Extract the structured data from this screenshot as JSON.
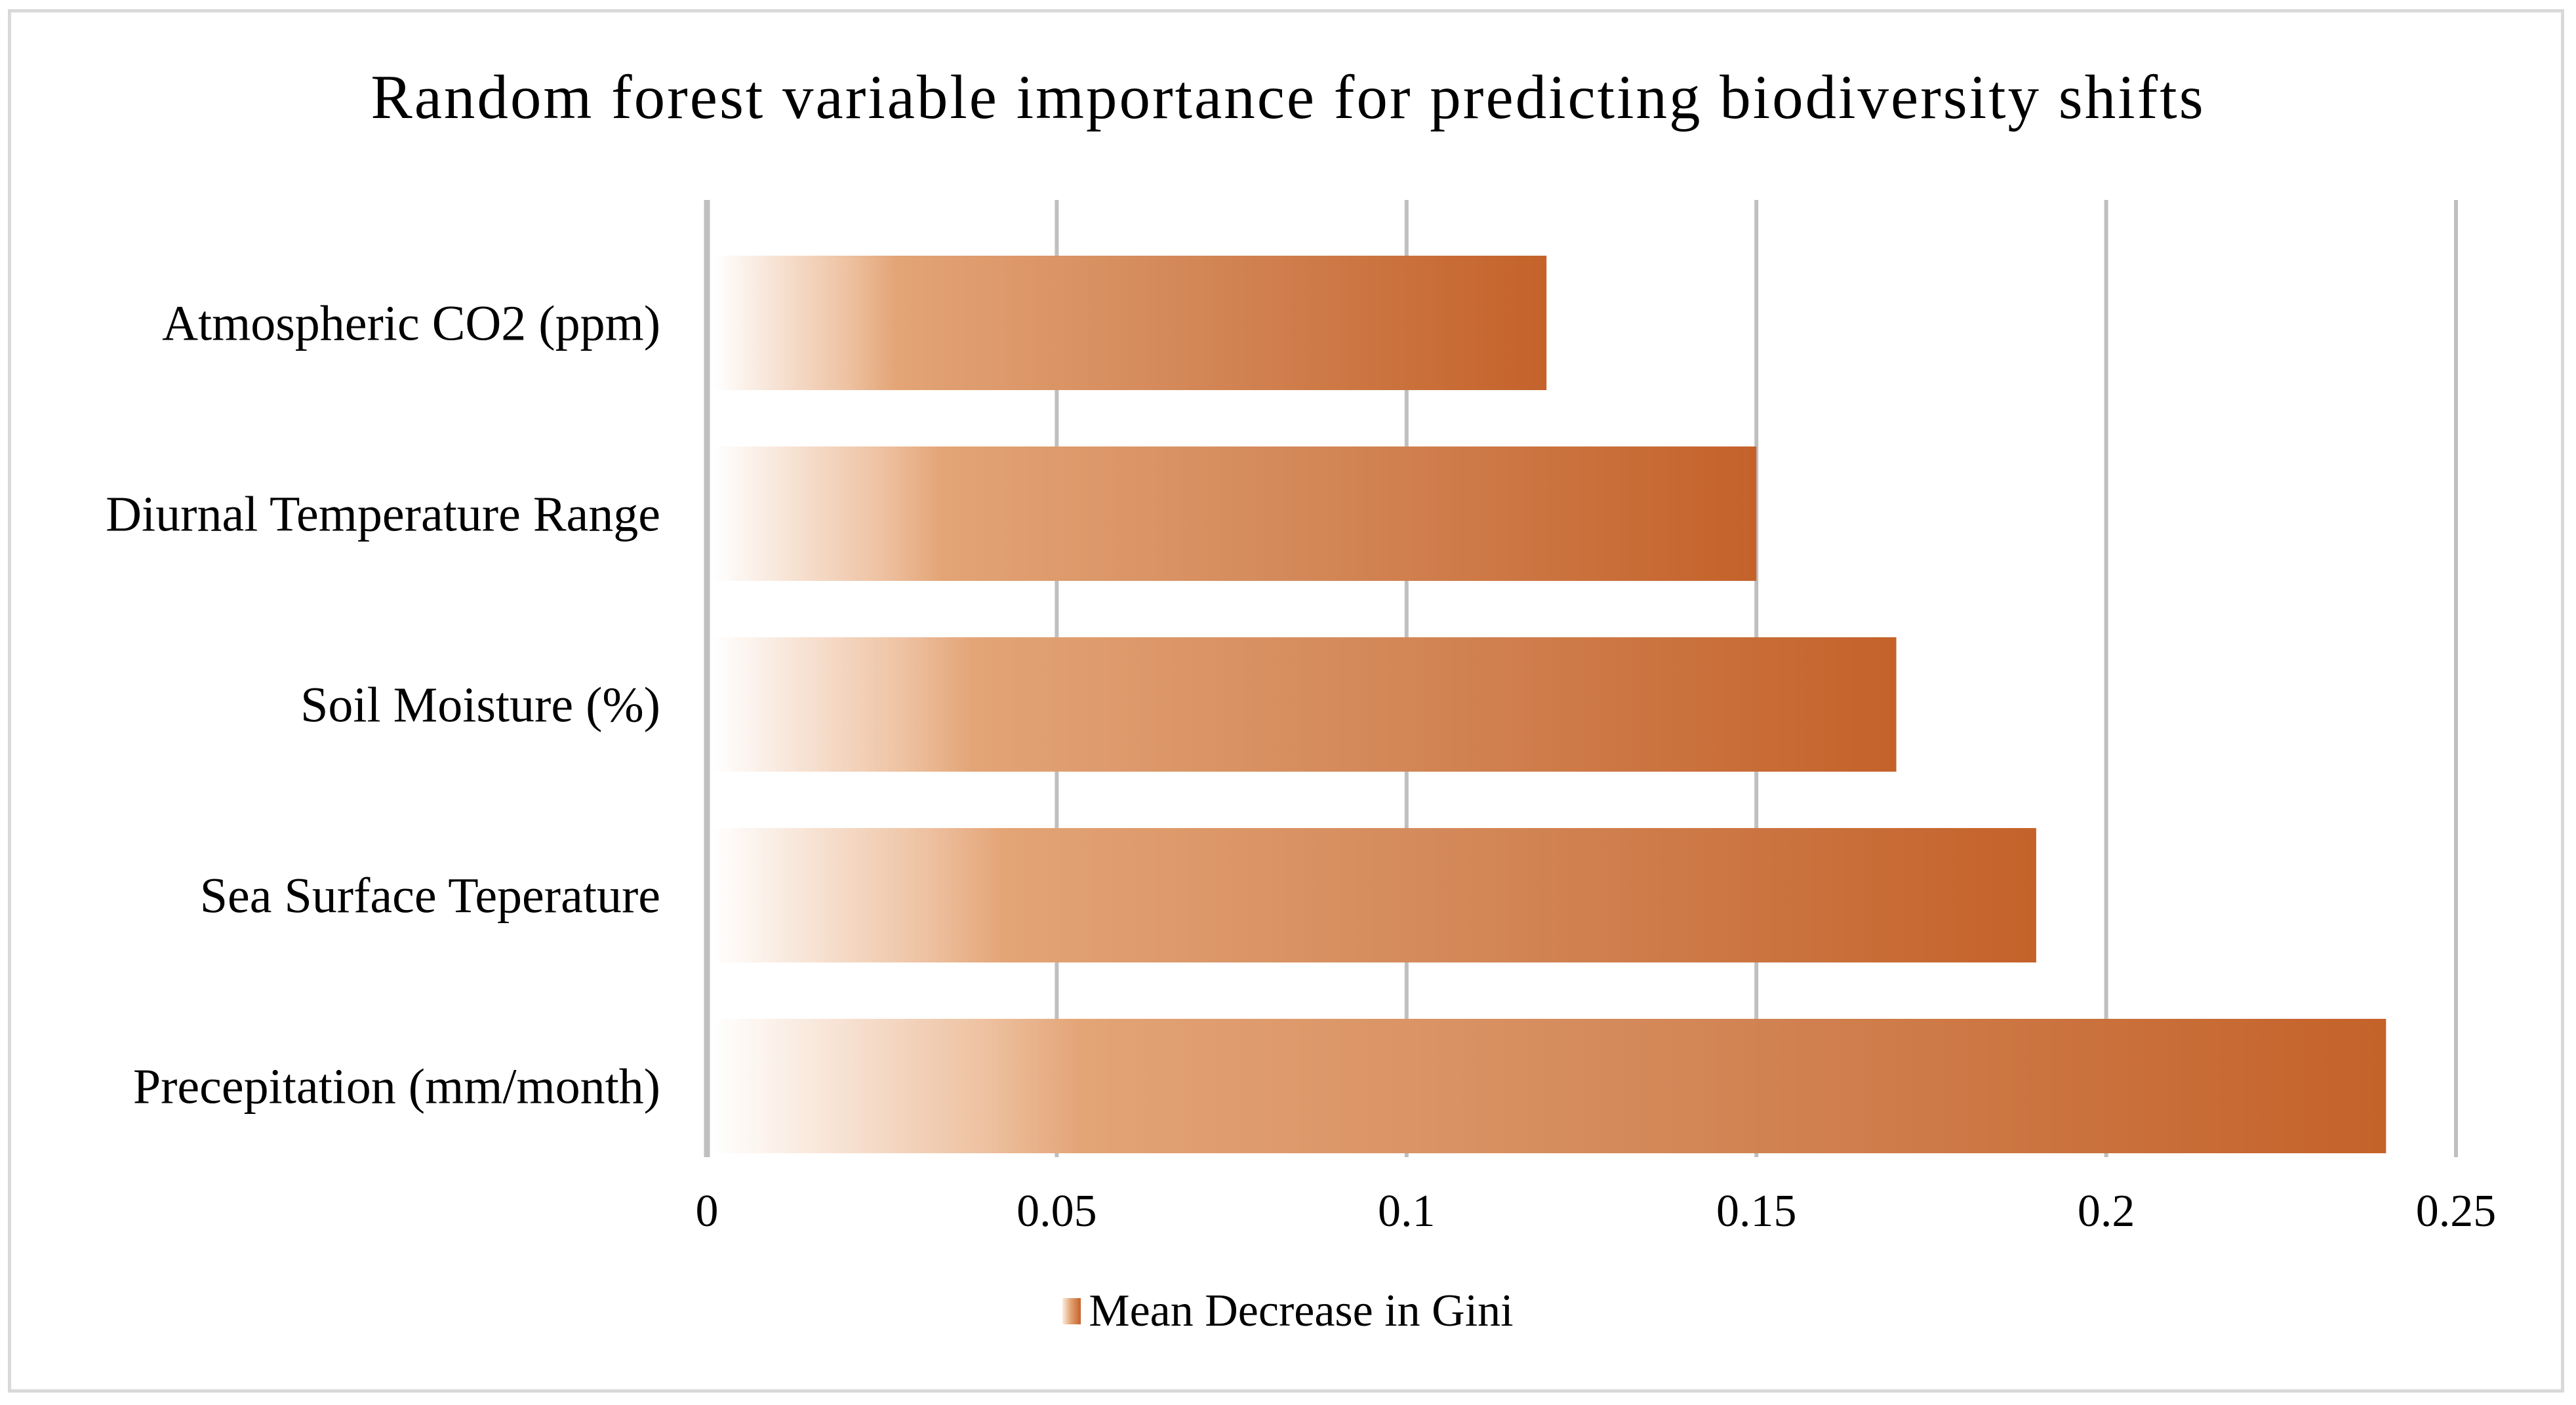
{
  "chart_data": {
    "type": "bar",
    "orientation": "horizontal",
    "title": "Random forest variable importance for predicting biodiversity shifts",
    "categories": [
      "Atmospheric CO2 (ppm)",
      "Diurnal Temperature Range",
      "Soil Moisture (%)",
      "Sea Surface Teperature",
      "Precepitation (mm/month)"
    ],
    "series": [
      {
        "name": "Mean Decrease in Gini",
        "values": [
          0.12,
          0.15,
          0.17,
          0.19,
          0.24
        ]
      }
    ],
    "xlim": [
      0,
      0.25
    ],
    "xticks": [
      "0",
      "0.05",
      "0.1",
      "0.15",
      "0.2",
      "0.25"
    ],
    "xlabel": "",
    "ylabel": "",
    "grid": "vertical",
    "legend_position": "bottom",
    "colors": {
      "bar_start": "#ffffff",
      "bar_mid": "#e3a476",
      "bar_end": "#c4622a",
      "gridline": "#bfbfbf",
      "axis": "#bfbfbf"
    }
  }
}
